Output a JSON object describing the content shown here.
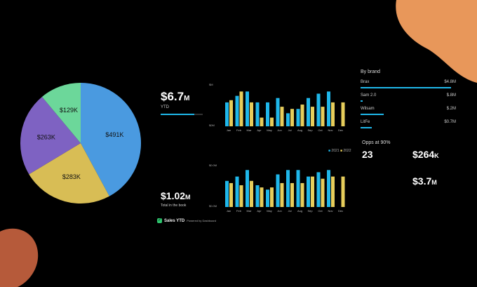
{
  "pie": {
    "slices": [
      {
        "label": "$491K",
        "value": 491,
        "color": "#4a9ae0"
      },
      {
        "label": "$283K",
        "value": 283,
        "color": "#d8bd55"
      },
      {
        "label": "$263K",
        "value": 263,
        "color": "#7e62c2"
      },
      {
        "label": "$129K",
        "value": 129,
        "color": "#6cd79a"
      }
    ]
  },
  "kpi_ytd": {
    "value": "$6.7",
    "unit": "M",
    "label": "YTD",
    "progress": 0.8
  },
  "kpi_total": {
    "value": "$1.02",
    "unit": "M",
    "label": "Total in the book"
  },
  "chart_top": {
    "ylabel_top": "$M",
    "ylabel_bottom": "$0M",
    "months": [
      "Jan",
      "Feb",
      "Mar",
      "Apr",
      "May",
      "Jun",
      "Jul",
      "Aug",
      "Sep",
      "Oct",
      "Nov",
      "Dec"
    ],
    "series_a": [
      0.55,
      0.7,
      0.8,
      0.55,
      0.55,
      0.65,
      0.3,
      0.4,
      0.65,
      0.75,
      0.8,
      0.0
    ],
    "series_b": [
      0.6,
      0.8,
      0.55,
      0.2,
      0.2,
      0.45,
      0.4,
      0.5,
      0.45,
      0.45,
      0.55,
      0.55
    ],
    "legend": [
      "2021",
      "2022"
    ]
  },
  "chart_bottom": {
    "ylabel_top": "$0.0M",
    "ylabel_bottom": "$0.0M",
    "months": [
      "Jan",
      "Feb",
      "Mar",
      "Apr",
      "May",
      "Jun",
      "Jul",
      "Aug",
      "Sep",
      "Oct",
      "Nov",
      "Dec"
    ],
    "series_a": [
      0.6,
      0.7,
      0.85,
      0.5,
      0.4,
      0.75,
      0.85,
      0.85,
      0.7,
      0.8,
      0.85,
      0.0
    ],
    "series_b": [
      0.55,
      0.5,
      0.6,
      0.45,
      0.45,
      0.55,
      0.55,
      0.55,
      0.7,
      0.65,
      0.7,
      0.7
    ],
    "colors": {
      "a": "#1fb7ea",
      "b": "#e6cd5b"
    }
  },
  "by_brand": {
    "title": "By brand",
    "items": [
      {
        "name": "Brax",
        "value": "$4.8M",
        "fraction": 0.95
      },
      {
        "name": "Sam 2.0",
        "value": "$.8M",
        "fraction": 0.02
      },
      {
        "name": "Wilsam",
        "value": "$.2M",
        "fraction": 0.24
      },
      {
        "name": "LitFe",
        "value": "$0.7M",
        "fraction": 0.12
      }
    ]
  },
  "opps": {
    "label": "Opps at 90%",
    "count": "23",
    "amount": "$264",
    "amount_unit": "K",
    "total": "$3.7",
    "total_unit": "M"
  },
  "footer": {
    "title": "Sales YTD",
    "subtitle": "Powered by Dashboard"
  }
}
